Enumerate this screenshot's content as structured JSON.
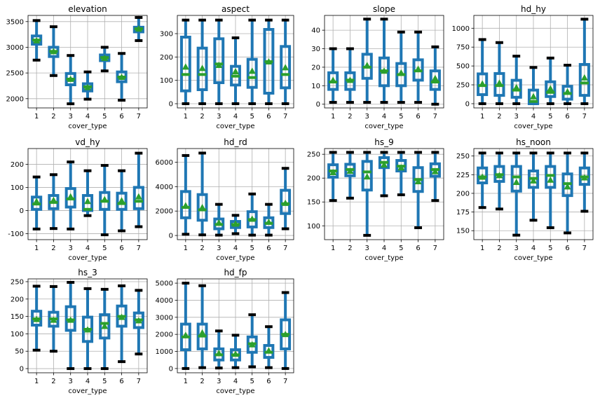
{
  "figure": {
    "colors": {
      "box": "#1f77b4",
      "median": "#2ca02c",
      "mean": "#2ca02c",
      "whisker": "#1f77b4",
      "cap": "#000000",
      "grid": "#b0b0b0"
    },
    "grid": true
  },
  "chart_data": [
    {
      "type": "box",
      "title": "elevation",
      "xlabel": "cover_type",
      "categories": [
        "1",
        "2",
        "3",
        "4",
        "5",
        "6",
        "7"
      ],
      "ylim": [
        1820,
        3620
      ],
      "yticks": [
        2000,
        2500,
        3000,
        3500
      ],
      "stats": [
        {
          "min": 2750,
          "q1": 3060,
          "median": 3140,
          "q3": 3220,
          "max": 3520,
          "mean": 3130
        },
        {
          "min": 2450,
          "q1": 2820,
          "median": 2920,
          "q3": 3000,
          "max": 3400,
          "mean": 2920
        },
        {
          "min": 1900,
          "q1": 2270,
          "median": 2380,
          "q3": 2490,
          "max": 2840,
          "mean": 2380
        },
        {
          "min": 1990,
          "q1": 2150,
          "median": 2230,
          "q3": 2290,
          "max": 2520,
          "mean": 2220
        },
        {
          "min": 2540,
          "q1": 2740,
          "median": 2800,
          "q3": 2850,
          "max": 3000,
          "mean": 2790
        },
        {
          "min": 1970,
          "q1": 2330,
          "median": 2420,
          "q3": 2520,
          "max": 2880,
          "mean": 2420
        },
        {
          "min": 3130,
          "q1": 3300,
          "median": 3360,
          "q3": 3390,
          "max": 3580,
          "mean": 3360
        }
      ]
    },
    {
      "type": "box",
      "title": "aspect",
      "xlabel": "cover_type",
      "categories": [
        "1",
        "2",
        "3",
        "4",
        "5",
        "6",
        "7"
      ],
      "ylim": [
        -18,
        378
      ],
      "yticks": [
        0,
        100,
        200,
        300
      ],
      "stats": [
        {
          "min": 0,
          "q1": 55,
          "median": 125,
          "q3": 285,
          "max": 358,
          "mean": 158
        },
        {
          "min": 0,
          "q1": 60,
          "median": 125,
          "q3": 238,
          "max": 358,
          "mean": 152
        },
        {
          "min": 0,
          "q1": 90,
          "median": 170,
          "q3": 278,
          "max": 358,
          "mean": 165
        },
        {
          "min": 0,
          "q1": 80,
          "median": 118,
          "q3": 160,
          "max": 282,
          "mean": 138
        },
        {
          "min": 0,
          "q1": 70,
          "median": 112,
          "q3": 190,
          "max": 358,
          "mean": 140
        },
        {
          "min": 0,
          "q1": 45,
          "median": 180,
          "q3": 318,
          "max": 358,
          "mean": 180
        },
        {
          "min": 0,
          "q1": 68,
          "median": 125,
          "q3": 245,
          "max": 358,
          "mean": 155
        }
      ]
    },
    {
      "type": "box",
      "title": "slope",
      "xlabel": "cover_type",
      "categories": [
        "1",
        "2",
        "3",
        "4",
        "5",
        "6",
        "7"
      ],
      "ylim": [
        -2,
        48
      ],
      "yticks": [
        0,
        10,
        20,
        30,
        40
      ],
      "stats": [
        {
          "min": 1,
          "q1": 8,
          "median": 12,
          "q3": 17,
          "max": 30,
          "mean": 13
        },
        {
          "min": 1,
          "q1": 8,
          "median": 13,
          "q3": 17,
          "max": 30,
          "mean": 13
        },
        {
          "min": 1,
          "q1": 14,
          "median": 20,
          "q3": 27,
          "max": 46,
          "mean": 21
        },
        {
          "min": 1,
          "q1": 10,
          "median": 18,
          "q3": 25,
          "max": 46,
          "mean": 18
        },
        {
          "min": 1,
          "q1": 10,
          "median": 16,
          "q3": 22,
          "max": 39,
          "mean": 17
        },
        {
          "min": 1,
          "q1": 13,
          "median": 18,
          "q3": 24,
          "max": 39,
          "mean": 19
        },
        {
          "min": 0,
          "q1": 8,
          "median": 12,
          "q3": 18,
          "max": 31,
          "mean": 14
        }
      ]
    },
    {
      "type": "box",
      "title": "hd_hy",
      "xlabel": "cover_type",
      "categories": [
        "1",
        "2",
        "3",
        "4",
        "5",
        "6",
        "7"
      ],
      "ylim": [
        -56,
        1170
      ],
      "yticks": [
        0,
        250,
        500,
        750,
        1000
      ],
      "stats": [
        {
          "min": 0,
          "q1": 120,
          "median": 240,
          "q3": 395,
          "max": 850,
          "mean": 265
        },
        {
          "min": 0,
          "q1": 110,
          "median": 240,
          "q3": 400,
          "max": 810,
          "mean": 275
        },
        {
          "min": 0,
          "q1": 85,
          "median": 180,
          "q3": 310,
          "max": 630,
          "mean": 215
        },
        {
          "min": 0,
          "q1": 0,
          "median": 30,
          "q3": 180,
          "max": 480,
          "mean": 95
        },
        {
          "min": 0,
          "q1": 95,
          "median": 150,
          "q3": 290,
          "max": 605,
          "mean": 200
        },
        {
          "min": 0,
          "q1": 60,
          "median": 135,
          "q3": 230,
          "max": 510,
          "mean": 160
        },
        {
          "min": 0,
          "q1": 110,
          "median": 275,
          "q3": 520,
          "max": 1120,
          "mean": 345
        }
      ]
    },
    {
      "type": "box",
      "title": "vd_hy",
      "xlabel": "cover_type",
      "categories": [
        "1",
        "2",
        "3",
        "4",
        "5",
        "6",
        "7"
      ],
      "ylim": [
        -126,
        268
      ],
      "yticks": [
        -100,
        0,
        100,
        200
      ],
      "stats": [
        {
          "min": -80,
          "q1": 5,
          "median": 28,
          "q3": 58,
          "max": 145,
          "mean": 40
        },
        {
          "min": -78,
          "q1": 8,
          "median": 35,
          "q3": 65,
          "max": 155,
          "mean": 45
        },
        {
          "min": -80,
          "q1": 15,
          "median": 50,
          "q3": 95,
          "max": 210,
          "mean": 60
        },
        {
          "min": -22,
          "q1": 0,
          "median": 5,
          "q3": 65,
          "max": 172,
          "mean": 40
        },
        {
          "min": -105,
          "q1": 5,
          "median": 40,
          "q3": 78,
          "max": 195,
          "mean": 48
        },
        {
          "min": -88,
          "q1": 5,
          "median": 30,
          "q3": 75,
          "max": 172,
          "mean": 43
        },
        {
          "min": -70,
          "q1": 8,
          "median": 40,
          "q3": 100,
          "max": 248,
          "mean": 60
        }
      ]
    },
    {
      "type": "box",
      "title": "hd_rd",
      "xlabel": "cover_type",
      "categories": [
        "1",
        "2",
        "3",
        "4",
        "5",
        "6",
        "7"
      ],
      "ylim": [
        -340,
        7120
      ],
      "yticks": [
        0,
        2000,
        4000,
        6000
      ],
      "stats": [
        {
          "min": 100,
          "q1": 1450,
          "median": 2300,
          "q3": 3600,
          "max": 6550,
          "mean": 2450
        },
        {
          "min": 50,
          "q1": 1250,
          "median": 2100,
          "q3": 3350,
          "max": 6750,
          "mean": 2300
        },
        {
          "min": 30,
          "q1": 550,
          "median": 900,
          "q3": 1350,
          "max": 2550,
          "mean": 1050
        },
        {
          "min": 150,
          "q1": 650,
          "median": 900,
          "q3": 1150,
          "max": 1650,
          "mean": 950
        },
        {
          "min": 30,
          "q1": 700,
          "median": 1300,
          "q3": 1950,
          "max": 3400,
          "mean": 1350
        },
        {
          "min": 30,
          "q1": 650,
          "median": 1000,
          "q3": 1450,
          "max": 2550,
          "mean": 1100
        },
        {
          "min": 550,
          "q1": 1800,
          "median": 2600,
          "q3": 3700,
          "max": 5500,
          "mean": 2650
        }
      ]
    },
    {
      "type": "box",
      "title": "hs_9",
      "xlabel": "cover_type",
      "categories": [
        "1",
        "2",
        "3",
        "4",
        "5",
        "6",
        "7"
      ],
      "ylim": [
        71,
        262
      ],
      "yticks": [
        100,
        150,
        200,
        250
      ],
      "stats": [
        {
          "min": 153,
          "q1": 202,
          "median": 215,
          "q3": 228,
          "max": 254,
          "mean": 212
        },
        {
          "min": 158,
          "q1": 205,
          "median": 218,
          "q3": 229,
          "max": 254,
          "mean": 215
        },
        {
          "min": 80,
          "q1": 175,
          "median": 213,
          "q3": 235,
          "max": 254,
          "mean": 203
        },
        {
          "min": 163,
          "q1": 222,
          "median": 233,
          "q3": 243,
          "max": 254,
          "mean": 228
        },
        {
          "min": 165,
          "q1": 215,
          "median": 225,
          "q3": 237,
          "max": 254,
          "mean": 222
        },
        {
          "min": 96,
          "q1": 172,
          "median": 197,
          "q3": 222,
          "max": 254,
          "mean": 193
        },
        {
          "min": 153,
          "q1": 204,
          "median": 218,
          "q3": 230,
          "max": 254,
          "mean": 214
        }
      ]
    },
    {
      "type": "box",
      "title": "hs_noon",
      "xlabel": "cover_type",
      "categories": [
        "1",
        "2",
        "3",
        "4",
        "5",
        "6",
        "7"
      ],
      "ylim": [
        138,
        260
      ],
      "yticks": [
        150,
        175,
        200,
        225,
        250
      ],
      "stats": [
        {
          "min": 181,
          "q1": 214,
          "median": 222,
          "q3": 234,
          "max": 254,
          "mean": 222
        },
        {
          "min": 179,
          "q1": 216,
          "median": 225,
          "q3": 236,
          "max": 254,
          "mean": 224
        },
        {
          "min": 144,
          "q1": 203,
          "median": 222,
          "q3": 236,
          "max": 254,
          "mean": 215
        },
        {
          "min": 164,
          "q1": 208,
          "median": 220,
          "q3": 230,
          "max": 254,
          "mean": 217
        },
        {
          "min": 154,
          "q1": 208,
          "median": 224,
          "q3": 236,
          "max": 254,
          "mean": 218
        },
        {
          "min": 147,
          "q1": 197,
          "median": 213,
          "q3": 226,
          "max": 254,
          "mean": 209
        },
        {
          "min": 176,
          "q1": 212,
          "median": 222,
          "q3": 234,
          "max": 254,
          "mean": 221
        }
      ]
    },
    {
      "type": "box",
      "title": "hs_3",
      "xlabel": "cover_type",
      "categories": [
        "1",
        "2",
        "3",
        "4",
        "5",
        "6",
        "7"
      ],
      "ylim": [
        -12,
        258
      ],
      "yticks": [
        0,
        50,
        100,
        150,
        200,
        250
      ],
      "stats": [
        {
          "min": 53,
          "q1": 125,
          "median": 143,
          "q3": 165,
          "max": 237,
          "mean": 142
        },
        {
          "min": 50,
          "q1": 122,
          "median": 143,
          "q3": 162,
          "max": 236,
          "mean": 140
        },
        {
          "min": 0,
          "q1": 110,
          "median": 140,
          "q3": 178,
          "max": 248,
          "mean": 140
        },
        {
          "min": 0,
          "q1": 78,
          "median": 113,
          "q3": 148,
          "max": 230,
          "mean": 112
        },
        {
          "min": 0,
          "q1": 88,
          "median": 130,
          "q3": 155,
          "max": 228,
          "mean": 122
        },
        {
          "min": 20,
          "q1": 122,
          "median": 150,
          "q3": 180,
          "max": 238,
          "mean": 148
        },
        {
          "min": 42,
          "q1": 118,
          "median": 140,
          "q3": 160,
          "max": 225,
          "mean": 138
        }
      ]
    },
    {
      "type": "box",
      "title": "hd_fp",
      "xlabel": "cover_type",
      "categories": [
        "1",
        "2",
        "3",
        "4",
        "5",
        "6",
        "7"
      ],
      "ylim": [
        -250,
        5250
      ],
      "yticks": [
        0,
        1000,
        2000,
        3000,
        4000,
        5000
      ],
      "stats": [
        {
          "min": 0,
          "q1": 1100,
          "median": 1850,
          "q3": 2600,
          "max": 5000,
          "mean": 1950
        },
        {
          "min": 50,
          "q1": 1150,
          "median": 1900,
          "q3": 2600,
          "max": 4850,
          "mean": 2100
        },
        {
          "min": 30,
          "q1": 500,
          "median": 800,
          "q3": 1150,
          "max": 2200,
          "mean": 900
        },
        {
          "min": 50,
          "q1": 500,
          "median": 800,
          "q3": 1100,
          "max": 1950,
          "mean": 850
        },
        {
          "min": 100,
          "q1": 950,
          "median": 1450,
          "q3": 1850,
          "max": 3150,
          "mean": 1400
        },
        {
          "min": 50,
          "q1": 650,
          "median": 950,
          "q3": 1350,
          "max": 2450,
          "mean": 1050
        },
        {
          "min": 0,
          "q1": 1150,
          "median": 2000,
          "q3": 2850,
          "max": 4450,
          "mean": 2000
        }
      ]
    }
  ]
}
